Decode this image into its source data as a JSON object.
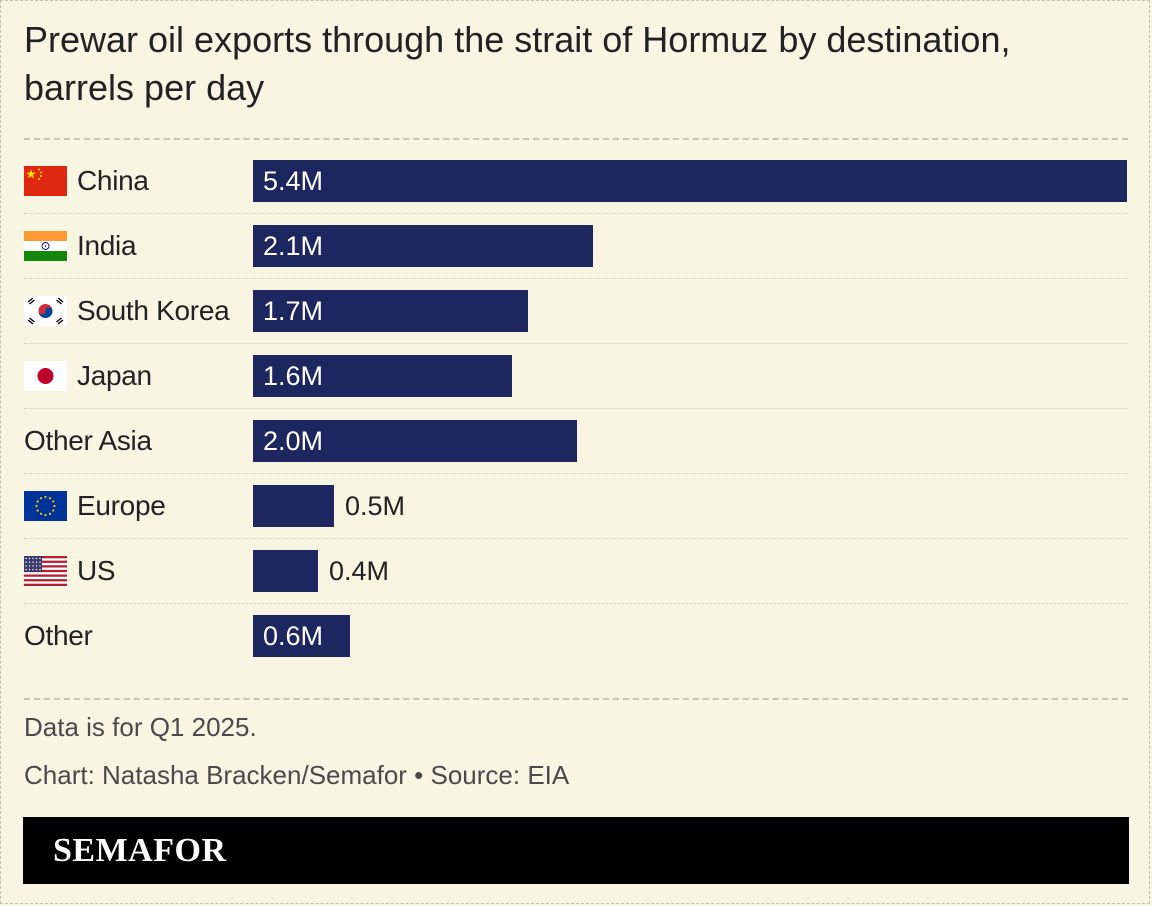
{
  "title": "Prewar oil exports through the strait of Hormuz by destination, barrels per day",
  "chart_data": {
    "type": "bar",
    "orientation": "horizontal",
    "title": "Prewar oil exports through the strait of Hormuz by destination, barrels per day",
    "categories": [
      "China",
      "India",
      "South Korea",
      "Japan",
      "Other Asia",
      "Europe",
      "US",
      "Other"
    ],
    "values": [
      5.4,
      2.1,
      1.7,
      1.6,
      2.0,
      0.5,
      0.4,
      0.6
    ],
    "value_labels": [
      "5.4M",
      "2.1M",
      "1.7M",
      "1.6M",
      "2.0M",
      "0.5M",
      "0.4M",
      "0.6M"
    ],
    "flags": [
      "china-flag",
      "india-flag",
      "south-korea-flag",
      "japan-flag",
      "",
      "eu-flag",
      "us-flag",
      ""
    ],
    "unit": "million barrels per day",
    "xlim": [
      0,
      5.4
    ],
    "grid": false,
    "bar_color": "#1e2660"
  },
  "note": "Data is for Q1 2025.",
  "credit": "Chart: Natasha Bracken/Semafor • Source: EIA",
  "brand": "SEMAFOR",
  "colors": {
    "background": "#f8f5e3",
    "bar": "#1e2660",
    "brand_bar": "#000000"
  }
}
